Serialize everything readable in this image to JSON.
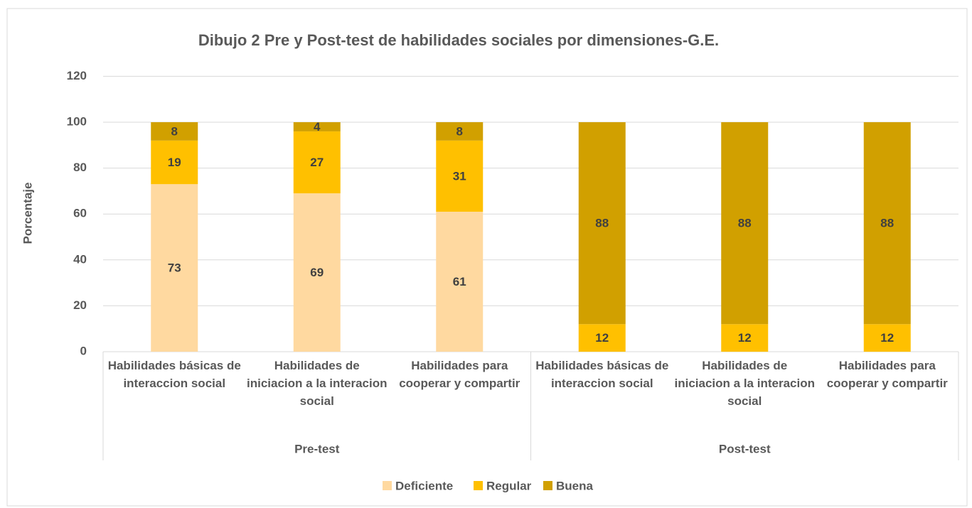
{
  "chart_data": {
    "type": "bar",
    "stacked": true,
    "title": "Dibujo 2 Pre y Post-test de habilidades sociales por dimensiones-G.E.",
    "ylabel": "Porcentaje",
    "groups": [
      "Pre-test",
      "Post-test"
    ],
    "categories": [
      "Habilidades  básicas de interaccion social",
      "Habilidades de iniciacion a la interacion social",
      "Habilidades  para cooperar y compartir",
      "Habilidades  básicas de interaccion social",
      "Habilidades de iniciacion a la interacion social",
      "Habilidades  para cooperar y compartir"
    ],
    "series": [
      {
        "name": "Deficiente",
        "color": "#ffd9a0",
        "values": [
          73,
          69,
          61,
          null,
          null,
          null
        ]
      },
      {
        "name": "Regular",
        "color": "#ffc000",
        "values": [
          19,
          27,
          31,
          12,
          12,
          12
        ]
      },
      {
        "name": "Buena",
        "color": "#d1a000",
        "values": [
          8,
          4,
          8,
          88,
          88,
          88
        ]
      }
    ],
    "ylim": [
      0,
      120
    ],
    "yticks": [
      0,
      20,
      40,
      60,
      80,
      100,
      120
    ],
    "grid": true,
    "legend": "bottom"
  }
}
